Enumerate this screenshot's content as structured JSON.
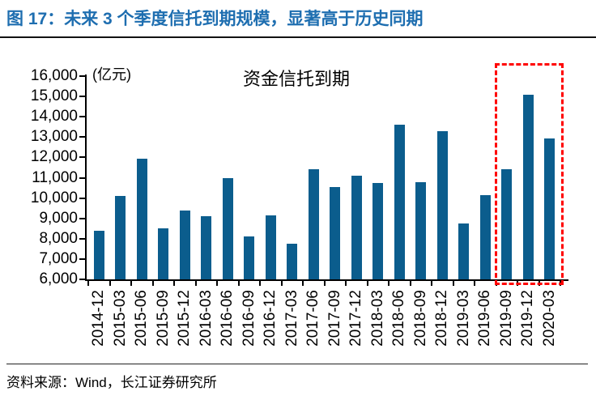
{
  "header": {
    "title": "图 17：未来 3 个季度信托到期规模，显著高于历史同期",
    "title_color": "#1E6EB0"
  },
  "chart_data": {
    "type": "bar",
    "title": "资金信托到期",
    "unit_label": "(亿元)",
    "categories": [
      "2014-12",
      "2015-03",
      "2015-06",
      "2015-09",
      "2015-12",
      "2016-03",
      "2016-06",
      "2016-09",
      "2016-12",
      "2017-03",
      "2017-06",
      "2017-09",
      "2017-12",
      "2018-03",
      "2018-06",
      "2018-09",
      "2018-12",
      "2019-03",
      "2019-06",
      "2019-09",
      "2019-12",
      "2020-03"
    ],
    "values": [
      8400,
      10100,
      11950,
      8500,
      9400,
      9100,
      11000,
      8100,
      9150,
      7750,
      11400,
      10550,
      11100,
      10750,
      13600,
      10800,
      13300,
      8750,
      10150,
      11400,
      15100,
      12950
    ],
    "ylim": [
      6000,
      16000
    ],
    "ytick_step": 1000,
    "grid": false,
    "legend_position": "none",
    "bar_color": "#0B5D8D",
    "highlight_box": {
      "start_category": "2019-09",
      "end_category": "2020-03",
      "color": "#FF0000"
    }
  },
  "footer": {
    "source": "资料来源：Wind，长江证券研究所"
  }
}
